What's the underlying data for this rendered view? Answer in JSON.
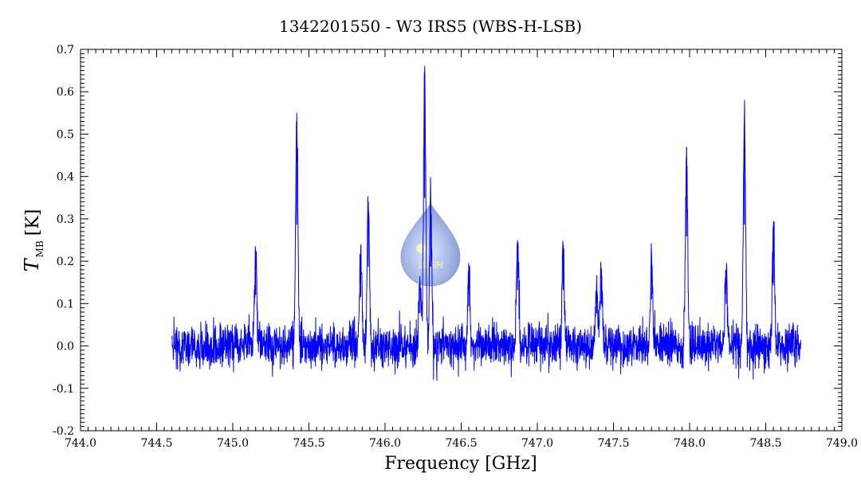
{
  "chart_data": {
    "type": "line",
    "title": "1342201550 - W3 IRS5 (WBS-H-LSB)",
    "xlabel": "Frequency [GHz]",
    "ylabel_main": "T",
    "ylabel_sub": "MB",
    "ylabel_unit": "[K]",
    "xlim": [
      744.0,
      749.0
    ],
    "ylim": [
      -0.2,
      0.7
    ],
    "x_ticks": [
      "744.0",
      "744.5",
      "745.0",
      "745.5",
      "746.0",
      "746.5",
      "747.0",
      "747.5",
      "748.0",
      "748.5",
      "749.0"
    ],
    "y_ticks": [
      "-0.2",
      "-0.1",
      "0.0",
      "0.1",
      "0.2",
      "0.3",
      "0.4",
      "0.5",
      "0.6",
      "0.7"
    ],
    "grid": false,
    "series": [
      {
        "color": "#0000ff",
        "x_range": [
          744.6,
          748.73
        ],
        "baseline": 0.0,
        "noise_rms": 0.025,
        "lines": [
          {
            "x": 745.15,
            "peak": 0.22
          },
          {
            "x": 745.42,
            "peak": 0.52
          },
          {
            "x": 745.84,
            "peak": 0.21
          },
          {
            "x": 745.89,
            "peak": 0.34
          },
          {
            "x": 746.23,
            "peak": 0.14
          },
          {
            "x": 746.26,
            "peak": 0.635
          },
          {
            "x": 746.3,
            "peak": 0.34
          },
          {
            "x": 746.55,
            "peak": 0.17
          },
          {
            "x": 746.87,
            "peak": 0.24
          },
          {
            "x": 747.17,
            "peak": 0.24
          },
          {
            "x": 747.39,
            "peak": 0.14
          },
          {
            "x": 747.42,
            "peak": 0.18
          },
          {
            "x": 747.75,
            "peak": 0.2
          },
          {
            "x": 747.98,
            "peak": 0.47
          },
          {
            "x": 748.24,
            "peak": 0.18
          },
          {
            "x": 748.36,
            "peak": 0.52
          },
          {
            "x": 748.55,
            "peak": 0.26
          }
        ]
      }
    ]
  },
  "watermark": {
    "text": "WISH",
    "color": "#8fa6df"
  }
}
